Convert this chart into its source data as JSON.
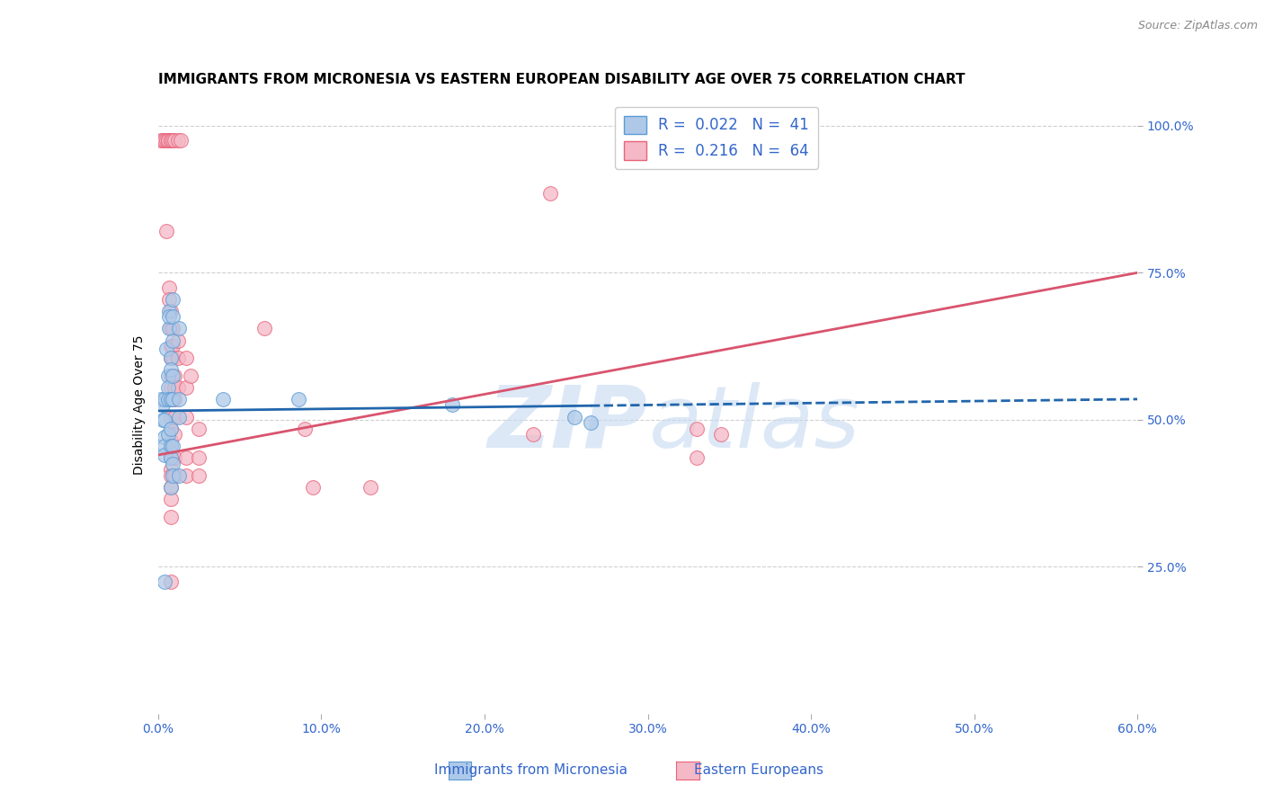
{
  "title": "IMMIGRANTS FROM MICRONESIA VS EASTERN EUROPEAN DISABILITY AGE OVER 75 CORRELATION CHART",
  "source": "Source: ZipAtlas.com",
  "xlabel_ticks": [
    "0.0%",
    "10.0%",
    "20.0%",
    "30.0%",
    "40.0%",
    "50.0%",
    "60.0%"
  ],
  "xlabel_vals": [
    0.0,
    0.1,
    0.2,
    0.3,
    0.4,
    0.5,
    0.6
  ],
  "ylabel_ticks": [
    "100.0%",
    "75.0%",
    "50.0%",
    "25.0%"
  ],
  "ylabel_vals": [
    1.0,
    0.75,
    0.5,
    0.25
  ],
  "xlim": [
    0.0,
    0.6
  ],
  "ylim": [
    0.0,
    1.05
  ],
  "legend_label1": "Immigrants from Micronesia",
  "legend_label2": "Eastern Europeans",
  "R1": "0.022",
  "N1": "41",
  "R2": "0.216",
  "N2": "64",
  "blue_color": "#aec9e8",
  "pink_color": "#f4b8c6",
  "blue_edge_color": "#5b9bd5",
  "pink_edge_color": "#e8637a",
  "blue_line_color": "#2166ac",
  "pink_line_color": "#d9546e",
  "blue_scatter": [
    [
      0.002,
      0.535
    ],
    [
      0.003,
      0.525
    ],
    [
      0.003,
      0.5
    ],
    [
      0.004,
      0.535
    ],
    [
      0.004,
      0.5
    ],
    [
      0.004,
      0.47
    ],
    [
      0.004,
      0.455
    ],
    [
      0.004,
      0.44
    ],
    [
      0.005,
      0.62
    ],
    [
      0.006,
      0.575
    ],
    [
      0.006,
      0.555
    ],
    [
      0.006,
      0.535
    ],
    [
      0.006,
      0.475
    ],
    [
      0.007,
      0.685
    ],
    [
      0.007,
      0.655
    ],
    [
      0.007,
      0.675
    ],
    [
      0.008,
      0.605
    ],
    [
      0.008,
      0.585
    ],
    [
      0.008,
      0.535
    ],
    [
      0.008,
      0.485
    ],
    [
      0.008,
      0.455
    ],
    [
      0.008,
      0.435
    ],
    [
      0.008,
      0.385
    ],
    [
      0.009,
      0.705
    ],
    [
      0.009,
      0.675
    ],
    [
      0.009,
      0.635
    ],
    [
      0.009,
      0.575
    ],
    [
      0.009,
      0.535
    ],
    [
      0.009,
      0.455
    ],
    [
      0.009,
      0.425
    ],
    [
      0.009,
      0.405
    ],
    [
      0.013,
      0.655
    ],
    [
      0.013,
      0.535
    ],
    [
      0.013,
      0.505
    ],
    [
      0.013,
      0.405
    ],
    [
      0.004,
      0.225
    ],
    [
      0.04,
      0.535
    ],
    [
      0.086,
      0.535
    ],
    [
      0.18,
      0.525
    ],
    [
      0.255,
      0.505
    ],
    [
      0.265,
      0.495
    ]
  ],
  "pink_scatter": [
    [
      0.002,
      0.975
    ],
    [
      0.003,
      0.975
    ],
    [
      0.004,
      0.975
    ],
    [
      0.005,
      0.975
    ],
    [
      0.006,
      0.975
    ],
    [
      0.006,
      0.975
    ],
    [
      0.008,
      0.975
    ],
    [
      0.008,
      0.975
    ],
    [
      0.009,
      0.975
    ],
    [
      0.01,
      0.975
    ],
    [
      0.012,
      0.975
    ],
    [
      0.014,
      0.975
    ],
    [
      0.005,
      0.82
    ],
    [
      0.007,
      0.725
    ],
    [
      0.007,
      0.705
    ],
    [
      0.008,
      0.685
    ],
    [
      0.008,
      0.655
    ],
    [
      0.008,
      0.625
    ],
    [
      0.008,
      0.605
    ],
    [
      0.008,
      0.575
    ],
    [
      0.008,
      0.555
    ],
    [
      0.008,
      0.535
    ],
    [
      0.008,
      0.505
    ],
    [
      0.008,
      0.485
    ],
    [
      0.008,
      0.465
    ],
    [
      0.008,
      0.445
    ],
    [
      0.008,
      0.435
    ],
    [
      0.008,
      0.415
    ],
    [
      0.008,
      0.405
    ],
    [
      0.008,
      0.385
    ],
    [
      0.008,
      0.365
    ],
    [
      0.008,
      0.335
    ],
    [
      0.009,
      0.655
    ],
    [
      0.009,
      0.625
    ],
    [
      0.009,
      0.605
    ],
    [
      0.01,
      0.575
    ],
    [
      0.01,
      0.555
    ],
    [
      0.01,
      0.535
    ],
    [
      0.01,
      0.505
    ],
    [
      0.01,
      0.475
    ],
    [
      0.01,
      0.435
    ],
    [
      0.01,
      0.405
    ],
    [
      0.012,
      0.635
    ],
    [
      0.012,
      0.605
    ],
    [
      0.012,
      0.555
    ],
    [
      0.017,
      0.605
    ],
    [
      0.017,
      0.555
    ],
    [
      0.017,
      0.505
    ],
    [
      0.017,
      0.435
    ],
    [
      0.017,
      0.405
    ],
    [
      0.02,
      0.575
    ],
    [
      0.025,
      0.485
    ],
    [
      0.025,
      0.435
    ],
    [
      0.025,
      0.405
    ],
    [
      0.065,
      0.655
    ],
    [
      0.09,
      0.485
    ],
    [
      0.095,
      0.385
    ],
    [
      0.13,
      0.385
    ],
    [
      0.23,
      0.475
    ],
    [
      0.24,
      0.885
    ],
    [
      0.33,
      0.485
    ],
    [
      0.33,
      0.435
    ],
    [
      0.345,
      0.475
    ],
    [
      0.008,
      0.225
    ]
  ],
  "title_fontsize": 11,
  "source_fontsize": 9,
  "axis_label_fontsize": 10,
  "tick_fontsize": 10,
  "legend_fontsize": 12,
  "watermark_color": "#c5d9f0",
  "watermark_alpha": 0.6,
  "grid_color": "#d0d0d0",
  "bottom_legend_label1": "Immigrants from Micronesia",
  "bottom_legend_label2": "Eastern Europeans"
}
